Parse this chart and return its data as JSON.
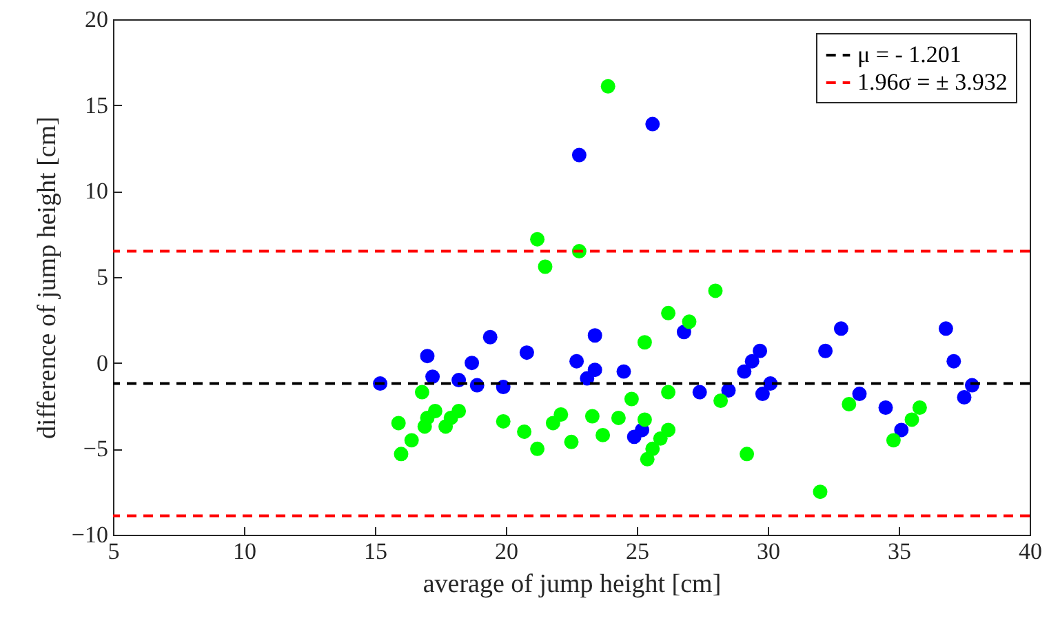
{
  "chart_data": {
    "type": "scatter",
    "xlabel": "average of jump height [cm]",
    "ylabel": "difference of jump height [cm]",
    "xlim": [
      5,
      40
    ],
    "xticks": [
      5,
      10,
      15,
      20,
      25,
      30,
      35,
      40
    ],
    "ylim": [
      -10,
      20
    ],
    "yticks": [
      -10,
      -5,
      0,
      5,
      10,
      15,
      20
    ],
    "grid": false,
    "marker": "circle",
    "legend": "top right",
    "line_style": "dashed",
    "series": [
      {
        "color": "#0000ff",
        "x": [
          15.2,
          17.0,
          17.2,
          18.2,
          18.7,
          18.9,
          19.4,
          19.9,
          20.8,
          22.8,
          22.7,
          23.1,
          23.4,
          23.4,
          24.5,
          24.9,
          25.2,
          25.6,
          26.8,
          27.4,
          28.5,
          29.1,
          29.4,
          29.7,
          29.8,
          30.1,
          32.2,
          32.8,
          33.5,
          34.5,
          35.1,
          36.8,
          37.1,
          37.5,
          37.8
        ],
        "values": [
          -1.2,
          0.4,
          -0.8,
          -1.0,
          0.0,
          -1.3,
          1.5,
          -1.4,
          0.6,
          12.1,
          0.1,
          -0.9,
          -0.4,
          1.6,
          -0.5,
          -4.3,
          -3.9,
          13.9,
          1.8,
          -1.7,
          -1.6,
          -0.5,
          0.1,
          0.7,
          -1.8,
          -1.2,
          0.7,
          2.0,
          -1.8,
          -2.6,
          -3.9,
          2.0,
          0.1,
          -2.0,
          -1.3
        ]
      },
      {
        "color": "#00ff00",
        "x": [
          15.9,
          16.0,
          16.4,
          16.8,
          16.9,
          17.0,
          17.3,
          17.7,
          17.9,
          18.2,
          19.9,
          20.7,
          21.2,
          21.2,
          21.5,
          21.8,
          22.1,
          22.5,
          22.8,
          23.3,
          23.7,
          23.9,
          24.3,
          24.8,
          25.3,
          25.3,
          25.4,
          25.6,
          25.9,
          26.2,
          26.2,
          26.2,
          27.0,
          28.0,
          28.2,
          29.2,
          32.0,
          33.1,
          34.8,
          35.5,
          35.8
        ],
        "values": [
          -3.5,
          -5.3,
          -4.5,
          -1.7,
          -3.7,
          -3.2,
          -2.8,
          -3.7,
          -3.2,
          -2.8,
          -3.4,
          -4.0,
          -5.0,
          7.2,
          5.6,
          -3.5,
          -3.0,
          -4.6,
          6.5,
          -3.1,
          -4.2,
          16.1,
          -3.2,
          -2.1,
          1.2,
          -3.3,
          -5.6,
          -5.0,
          -4.4,
          -3.9,
          -1.7,
          2.9,
          2.4,
          4.2,
          -2.2,
          -5.3,
          -7.5,
          -2.4,
          -4.5,
          -3.3,
          -2.6
        ]
      }
    ],
    "ref_lines": [
      {
        "axis": "y",
        "value": -1.201,
        "label": "μ = - 1.201",
        "color": "#000000"
      },
      {
        "axis": "y",
        "value": 6.5,
        "label": "1.96σ = ± 3.932",
        "color": "#ff0000"
      },
      {
        "axis": "y",
        "value": -8.9,
        "color": "#ff0000"
      }
    ]
  }
}
